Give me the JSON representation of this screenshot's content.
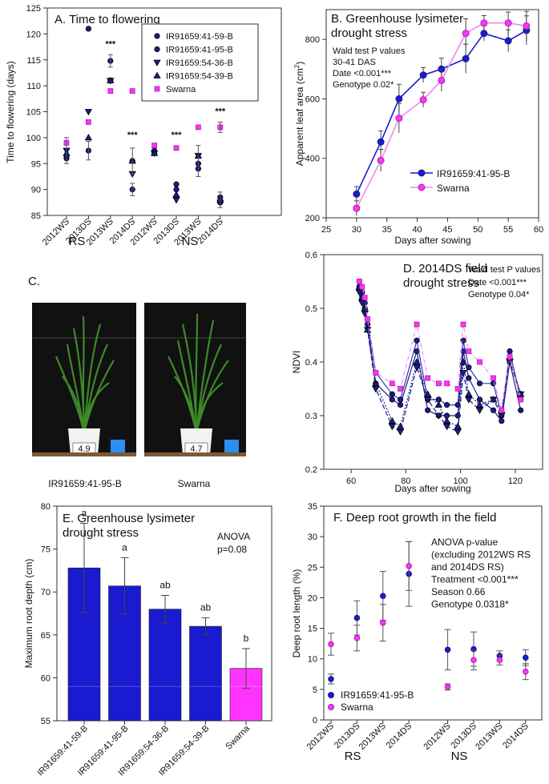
{
  "panel_c": {
    "label": "C.",
    "photo1_tag": "4.9",
    "photo2_tag": "4.7",
    "caption1": "IR91659:41-95-B",
    "caption2": "Swarna"
  },
  "colors": {
    "blue": "#1a1ad0",
    "navy": "#1c1c8c",
    "magenta": "#ff33ff",
    "swarna_line": "#ee88ee"
  },
  "chart_data": [
    {
      "panel": "A",
      "type": "scatter",
      "title": "A. Time to flowering",
      "ylabel": "Time to flowering (days)",
      "ylim": [
        85,
        125
      ],
      "yticks": [
        85,
        90,
        95,
        100,
        105,
        110,
        115,
        120,
        125
      ],
      "categories": [
        "2012WS",
        "2013DS",
        "2013WS",
        "2014DS",
        "2012WS",
        "2013DS",
        "2013WS",
        "2014DS"
      ],
      "groups": [
        "RS",
        "NS"
      ],
      "series": [
        {
          "name": "IR91659:41-59-B",
          "marker": "circle",
          "values": [
            96,
            97.5,
            111,
            90,
            97.5,
            91,
            95,
            87.5
          ]
        },
        {
          "name": "IR91659:41-95-B",
          "marker": "circle",
          "values": [
            96.5,
            121,
            114.8,
            95.5,
            97,
            90,
            94,
            88.5
          ]
        },
        {
          "name": "IR91659:54-36-B",
          "marker": "triangle-down",
          "values": [
            97.5,
            105,
            111,
            93,
            97,
            88,
            96.5,
            87.5
          ]
        },
        {
          "name": "IR91659:54-39-B",
          "marker": "triangle-up",
          "values": [
            97,
            100,
            111,
            95.5,
            97,
            89,
            96.5,
            88
          ]
        },
        {
          "name": "Swarna",
          "marker": "square",
          "values": [
            99,
            103,
            109,
            109,
            98.5,
            98,
            102,
            102
          ]
        }
      ],
      "annotations": [
        "***",
        "***",
        "***",
        "***"
      ]
    },
    {
      "panel": "B",
      "type": "line",
      "title_line1": "B. Greenhouse lysimeter",
      "title_line2": "drought stress",
      "xlabel": "Days after sowing",
      "ylabel": "Apparent leaf area (cm",
      "ylabel_sup": "2",
      "ylabel_end": ")",
      "xlim": [
        25,
        60
      ],
      "ylim": [
        200,
        900
      ],
      "xticks": [
        25,
        30,
        35,
        40,
        45,
        50,
        55,
        60
      ],
      "yticks": [
        200,
        400,
        600,
        800
      ],
      "stats": [
        "Wald test P values",
        "30-41 DAS",
        "Date      <0.001***",
        "Genotype 0.02*"
      ],
      "series": [
        {
          "name": "IR91659:41-95-B",
          "x": [
            30,
            34,
            37,
            41,
            44,
            48,
            51,
            55,
            58
          ],
          "y": [
            280,
            455,
            600,
            680,
            700,
            735,
            820,
            795,
            830
          ]
        },
        {
          "name": "Swarna",
          "x": [
            30,
            34,
            37,
            41,
            44,
            48,
            51,
            55,
            58
          ],
          "y": [
            232,
            393,
            535,
            597,
            662,
            820,
            855,
            855,
            845
          ]
        }
      ]
    },
    {
      "panel": "D",
      "type": "line",
      "title_line1": "D. 2014DS field",
      "title_line2": "drought stress",
      "xlabel": "Days after sowing",
      "ylabel": "NDVI",
      "xlim": [
        50,
        130
      ],
      "ylim": [
        0.2,
        0.6
      ],
      "xticks": [
        60,
        80,
        100,
        120
      ],
      "yticks": [
        0.2,
        0.3,
        0.4,
        0.5,
        0.6
      ],
      "stats": [
        "Wald test P values",
        "Date        <0.001***",
        "Genotype 0.04*"
      ],
      "x": [
        63,
        64,
        65,
        66,
        69,
        75,
        78,
        84,
        88,
        92,
        95,
        99,
        101,
        103,
        107,
        112,
        115,
        118,
        122
      ],
      "series": [
        {
          "name": "IR91659:41-59-B",
          "values": [
            0.54,
            0.52,
            0.5,
            0.47,
            0.36,
            0.33,
            0.32,
            0.42,
            0.31,
            0.3,
            0.3,
            0.3,
            0.42,
            0.37,
            0.33,
            0.31,
            0.29,
            0.4,
            0.31
          ]
        },
        {
          "name": "IR91659:41-95-B",
          "values": [
            0.55,
            0.53,
            0.51,
            0.48,
            0.38,
            0.34,
            0.33,
            0.44,
            0.33,
            0.33,
            0.32,
            0.32,
            0.44,
            0.39,
            0.36,
            0.36,
            0.3,
            0.42,
            0.33
          ]
        },
        {
          "name": "IR91659:54-36-B",
          "values": [
            0.53,
            0.51,
            0.49,
            0.46,
            0.35,
            0.28,
            0.27,
            0.39,
            0.33,
            0.3,
            0.28,
            0.27,
            0.38,
            0.33,
            0.31,
            0.33,
            0.3,
            0.4,
            0.34
          ]
        },
        {
          "name": "IR91659:54-39-B",
          "values": [
            0.54,
            0.52,
            0.5,
            0.46,
            0.36,
            0.29,
            0.28,
            0.4,
            0.34,
            0.32,
            0.29,
            0.28,
            0.4,
            0.34,
            0.32,
            0.33,
            0.31,
            0.41,
            0.34
          ]
        },
        {
          "name": "Swarna",
          "values": [
            0.55,
            0.54,
            0.52,
            0.48,
            0.38,
            0.36,
            0.35,
            0.47,
            0.37,
            0.36,
            0.36,
            0.35,
            0.47,
            0.42,
            0.4,
            0.37,
            0.31,
            0.41,
            0.33
          ]
        }
      ]
    },
    {
      "panel": "E",
      "type": "bar",
      "title_line1": "E. Greenhouse lysimeter",
      "title_line2": "drought stress",
      "ylabel": "Maximum root depth (cm)",
      "ylim": [
        55,
        80
      ],
      "yticks": [
        55,
        60,
        65,
        70,
        75,
        80
      ],
      "stats": [
        "ANOVA",
        "p=0.08"
      ],
      "categories": [
        "IR91659:41-59-B",
        "IR91659:41-95-B",
        "IR91659:54-36-B",
        "IR91659:54-39-B",
        "Swarna"
      ],
      "values": [
        72.8,
        70.7,
        68.0,
        66.0,
        61.1
      ],
      "errors": [
        5.2,
        3.3,
        1.6,
        1.0,
        2.3
      ],
      "letters": [
        "a",
        "a",
        "ab",
        "ab",
        "b"
      ]
    },
    {
      "panel": "F",
      "type": "scatter",
      "title": "F. Deep root growth in the field",
      "ylabel": "Deep root length (%)",
      "ylim": [
        0,
        35
      ],
      "yticks": [
        0,
        5,
        10,
        15,
        20,
        25,
        30,
        35
      ],
      "categories": [
        "2012WS",
        "2013DS",
        "2013WS",
        "2014DS",
        "2012WS",
        "2013DS",
        "2013WS",
        "2014DS"
      ],
      "groups": [
        "RS",
        "NS"
      ],
      "stats": [
        "ANOVA p-value",
        "(excluding 2012WS RS",
        " and 2014DS RS)",
        "Treatment <0.001***",
        "Season     0.66",
        "Genotype  0.0318*"
      ],
      "series": [
        {
          "name": "IR91659:41-95-B",
          "values": [
            6.7,
            16.7,
            20.3,
            23.9,
            11.5,
            11.6,
            10.5,
            10.2
          ],
          "errors": [
            0.8,
            2.8,
            4.0,
            5.3,
            3.3,
            2.8,
            0.8,
            1.3
          ]
        },
        {
          "name": "Swarna",
          "values": [
            12.4,
            13.4,
            15.9,
            25.2,
            5.4,
            9.8,
            9.8,
            7.9
          ],
          "errors": [
            1.8,
            2.1,
            3.0,
            4.0,
            0.5,
            1.6,
            0.8,
            1.3
          ]
        }
      ]
    }
  ]
}
